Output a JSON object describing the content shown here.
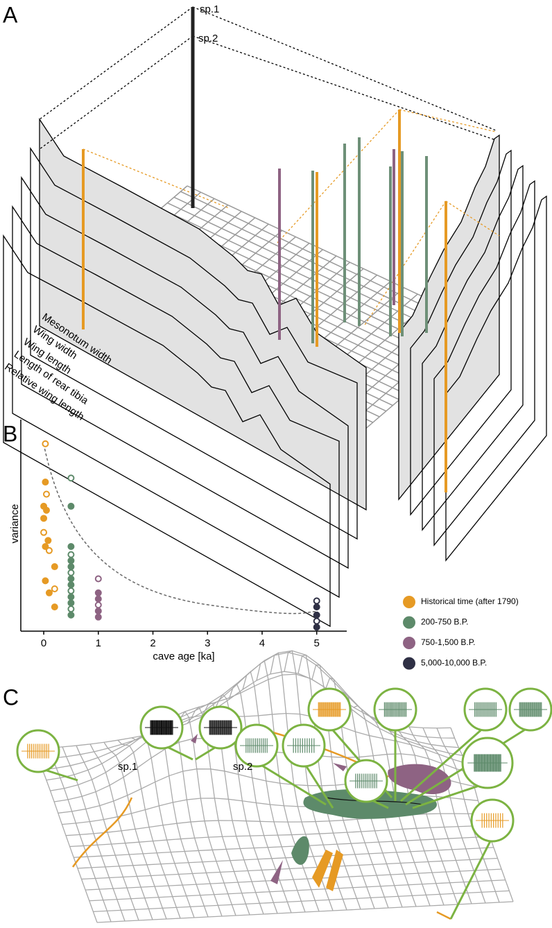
{
  "panel_labels": [
    "A",
    "B",
    "C"
  ],
  "panel_a": {
    "species_labels": [
      "sp.1",
      "sp.2"
    ],
    "traits": [
      "Mesonotum width",
      "Wing width",
      "Wing length",
      "Length of rear tibia",
      "Relative wing length"
    ]
  },
  "chart_data": {
    "type": "scatter",
    "xlabel": "cave age [ka]",
    "ylabel": "variance",
    "xlim": [
      -0.42,
      5.55
    ],
    "xticks": [
      0,
      1,
      2,
      3,
      4,
      5
    ],
    "ylim": [
      0,
      1.05
    ],
    "legend": "right",
    "series": [
      {
        "name": "Historical time (after 1790)",
        "color": "#e69a24",
        "x": [
          0.03,
          0.03,
          0,
          0.05,
          0,
          0.05,
          0,
          0.08,
          0.03,
          0.1,
          0.2,
          0.03,
          0.2,
          0.1,
          0.2
        ],
        "values": [
          0.93,
          0.74,
          0.56,
          0.68,
          0.62,
          0.6,
          0.49,
          0.45,
          0.42,
          0.4,
          0.32,
          0.25,
          0.21,
          0.19,
          0.12
        ]
      },
      {
        "name": "200-750 B.P.",
        "color": "#5d8a6a",
        "x": [
          0.5,
          0.5,
          0.5,
          0.5,
          0.5,
          0.5,
          0.5,
          0.5,
          0.5,
          0.5,
          0.5,
          0.5,
          0.5,
          0.5
        ],
        "values": [
          0.76,
          0.62,
          0.42,
          0.38,
          0.35,
          0.32,
          0.29,
          0.26,
          0.23,
          0.2,
          0.17,
          0.14,
          0.11,
          0.08
        ]
      },
      {
        "name": "750-1,500 B.P.",
        "color": "#8e6383",
        "x": [
          1,
          1,
          1,
          1,
          1,
          1
        ],
        "values": [
          0.26,
          0.19,
          0.16,
          0.13,
          0.1,
          0.07
        ]
      },
      {
        "name": "5,000-10,000 B.P.",
        "color": "#2f3045",
        "x": [
          5,
          5,
          5,
          5,
          5
        ],
        "values": [
          0.15,
          0.12,
          0.08,
          0.05,
          0.02
        ]
      }
    ]
  },
  "panel_c": {
    "species_labels": [
      "sp.1",
      "sp.2"
    ]
  }
}
